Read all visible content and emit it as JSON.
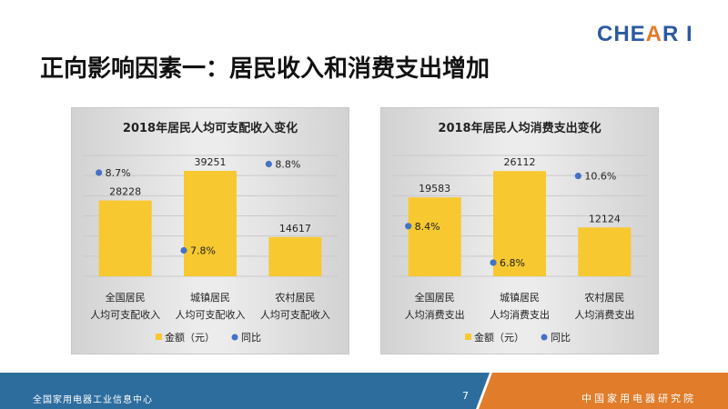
{
  "logo": {
    "text_main": "CHE",
    "text_accent": "A",
    "text_tail": "R I"
  },
  "page_title": "正向影响因素一：居民收入和消费支出增加",
  "colors": {
    "bar": "#f7c82f",
    "dot": "#4472c4",
    "footer_blue": "#2d6d9e",
    "footer_orange": "#e07c2a"
  },
  "chart_data": [
    {
      "type": "bar",
      "title": "2018年居民人均可支配收入变化",
      "categories": [
        [
          "全国居民",
          "人均可支配收入"
        ],
        [
          "城镇居民",
          "人均可支配收入"
        ],
        [
          "农村居民",
          "人均可支配收入"
        ]
      ],
      "series": [
        {
          "name": "金额（元）",
          "type": "bar",
          "values": [
            28228,
            39251,
            14617
          ],
          "labels": [
            "28228",
            "39251",
            "14617"
          ]
        },
        {
          "name": "同比",
          "type": "scatter",
          "values": [
            8.7,
            7.8,
            8.8
          ],
          "labels": [
            "8.7%",
            "7.8%",
            "8.8%"
          ]
        }
      ],
      "ylim_bar": [
        0,
        45000
      ],
      "ylim_dot": [
        7.5,
        8.9
      ],
      "grid": true,
      "legend_position": "bottom"
    },
    {
      "type": "bar",
      "title": "2018年居民人均消费支出变化",
      "categories": [
        [
          "全国居民",
          "人均消费支出"
        ],
        [
          "城镇居民",
          "人均消费支出"
        ],
        [
          "农村居民",
          "人均消费支出"
        ]
      ],
      "series": [
        {
          "name": "金额（元）",
          "type": "bar",
          "values": [
            19583,
            26112,
            12124
          ],
          "labels": [
            "19583",
            "26112",
            "12124"
          ]
        },
        {
          "name": "同比",
          "type": "scatter",
          "values": [
            8.4,
            6.8,
            10.6
          ],
          "labels": [
            "8.4%",
            "6.8%",
            "10.6%"
          ]
        }
      ],
      "ylim_bar": [
        0,
        30000
      ],
      "ylim_dot": [
        6.2,
        11.5
      ],
      "grid": true,
      "legend_position": "bottom"
    }
  ],
  "footer": {
    "left_text": "全国家用电器工业信息中心",
    "page_number": "7",
    "right_text": "中国家用电器研究院"
  }
}
